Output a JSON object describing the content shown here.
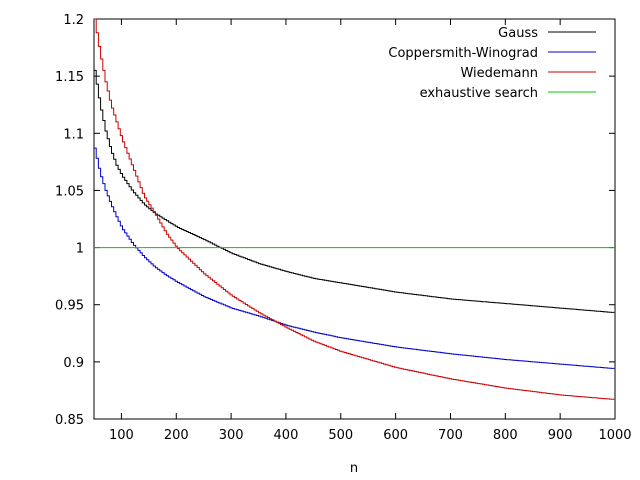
{
  "chart_data": {
    "type": "line",
    "title": "",
    "xlabel": "n",
    "ylabel": "",
    "xlim": [
      50,
      1000
    ],
    "ylim": [
      0.85,
      1.2
    ],
    "xticks": [
      100,
      200,
      300,
      400,
      500,
      600,
      700,
      800,
      900,
      1000
    ],
    "yticks": [
      0.85,
      0.9,
      0.95,
      1,
      1.05,
      1.1,
      1.15,
      1.2
    ],
    "xtick_labels": [
      "100",
      "200",
      "300",
      "400",
      "500",
      "600",
      "700",
      "800",
      "900",
      "1000"
    ],
    "ytick_labels": [
      "0.85",
      "0.9",
      "0.95",
      "1",
      "1.05",
      "1.1",
      "1.15",
      "1.2"
    ],
    "grid": false,
    "legend_position": "top-right",
    "series": [
      {
        "name": "Gauss",
        "color": "#000000",
        "step": true,
        "x": [
          50,
          60,
          70,
          80,
          90,
          100,
          120,
          140,
          160,
          180,
          200,
          250,
          300,
          350,
          400,
          450,
          500,
          600,
          700,
          800,
          900,
          1000
        ],
        "y": [
          1.155,
          1.125,
          1.102,
          1.085,
          1.072,
          1.063,
          1.049,
          1.038,
          1.03,
          1.024,
          1.018,
          1.007,
          0.995,
          0.986,
          0.979,
          0.973,
          0.969,
          0.961,
          0.955,
          0.951,
          0.947,
          0.943
        ]
      },
      {
        "name": "Coppersmith-Winograd",
        "color": "#0000cc",
        "step": true,
        "x": [
          50,
          60,
          70,
          80,
          90,
          100,
          120,
          140,
          160,
          180,
          200,
          250,
          300,
          350,
          400,
          450,
          500,
          600,
          700,
          800,
          900,
          1000
        ],
        "y": [
          1.087,
          1.065,
          1.05,
          1.038,
          1.027,
          1.017,
          1.003,
          0.992,
          0.983,
          0.976,
          0.97,
          0.957,
          0.947,
          0.94,
          0.932,
          0.926,
          0.921,
          0.913,
          0.907,
          0.902,
          0.898,
          0.894
        ]
      },
      {
        "name": "Wiedemann",
        "color": "#cc0000",
        "step": true,
        "x": [
          50,
          60,
          70,
          80,
          90,
          100,
          120,
          140,
          160,
          180,
          200,
          250,
          300,
          350,
          400,
          450,
          500,
          600,
          700,
          800,
          900,
          1000
        ],
        "y": [
          1.2,
          1.17,
          1.145,
          1.125,
          1.11,
          1.095,
          1.07,
          1.045,
          1.03,
          1.013,
          1.0,
          0.977,
          0.958,
          0.943,
          0.93,
          0.918,
          0.909,
          0.895,
          0.885,
          0.877,
          0.871,
          0.867
        ]
      },
      {
        "name": "exhaustive search",
        "color": "#00cc00",
        "step": false,
        "x": [
          50,
          1000
        ],
        "y": [
          1,
          1
        ]
      }
    ]
  }
}
